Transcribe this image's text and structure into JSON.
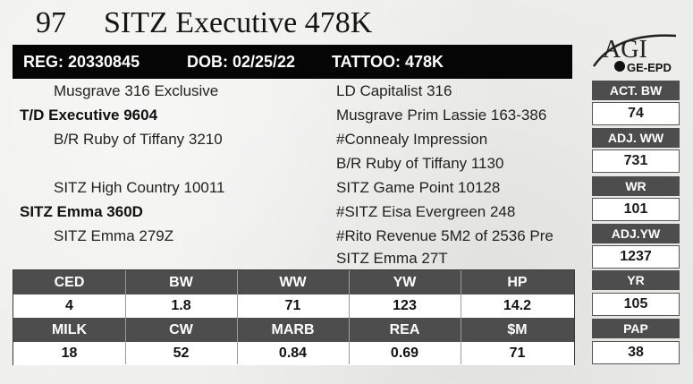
{
  "lot": {
    "number": "97",
    "name": "SITZ Executive 478K"
  },
  "registration": {
    "reg": "REG: 20330845",
    "dob": "DOB: 02/25/22",
    "tattoo": "TATTOO: 478K"
  },
  "logo": {
    "brand": "AGI",
    "sub": "GE-EPD"
  },
  "pedigree": {
    "sire_sire": "Musgrave 316 Exclusive",
    "sire": "T/D Executive 9604",
    "sire_dam": "B/R Ruby of Tiffany 3210",
    "dam_sire": "SITZ High Country 10011",
    "dam": "SITZ Emma 360D",
    "dam_dam": "SITZ Emma 279Z",
    "right": [
      "LD Capitalist 316",
      "Musgrave Prim Lassie 163-386",
      "#Connealy Impression",
      "B/R Ruby of Tiffany 1130",
      "SITZ Game Point 10128",
      "#SITZ Eisa Evergreen 248",
      "#Rito Revenue 5M2 of 2536 Pre",
      "SITZ Emma 27T"
    ]
  },
  "side_epds": [
    {
      "label": "ACT. BW",
      "value": "74"
    },
    {
      "label": "ADJ. WW",
      "value": "731"
    },
    {
      "label": "WR",
      "value": "101"
    },
    {
      "label": "ADJ.YW",
      "value": "1237"
    },
    {
      "label": "YR",
      "value": "105"
    },
    {
      "label": "PAP",
      "value": "38"
    }
  ],
  "epd_table": {
    "row1": {
      "headers": [
        "CED",
        "BW",
        "WW",
        "YW",
        "HP"
      ],
      "values": [
        "4",
        "1.8",
        "71",
        "123",
        "14.2"
      ]
    },
    "row2": {
      "headers": [
        "MILK",
        "CW",
        "MARB",
        "REA",
        "$M"
      ],
      "values": [
        "18",
        "52",
        "0.84",
        "0.69",
        "71"
      ]
    }
  }
}
